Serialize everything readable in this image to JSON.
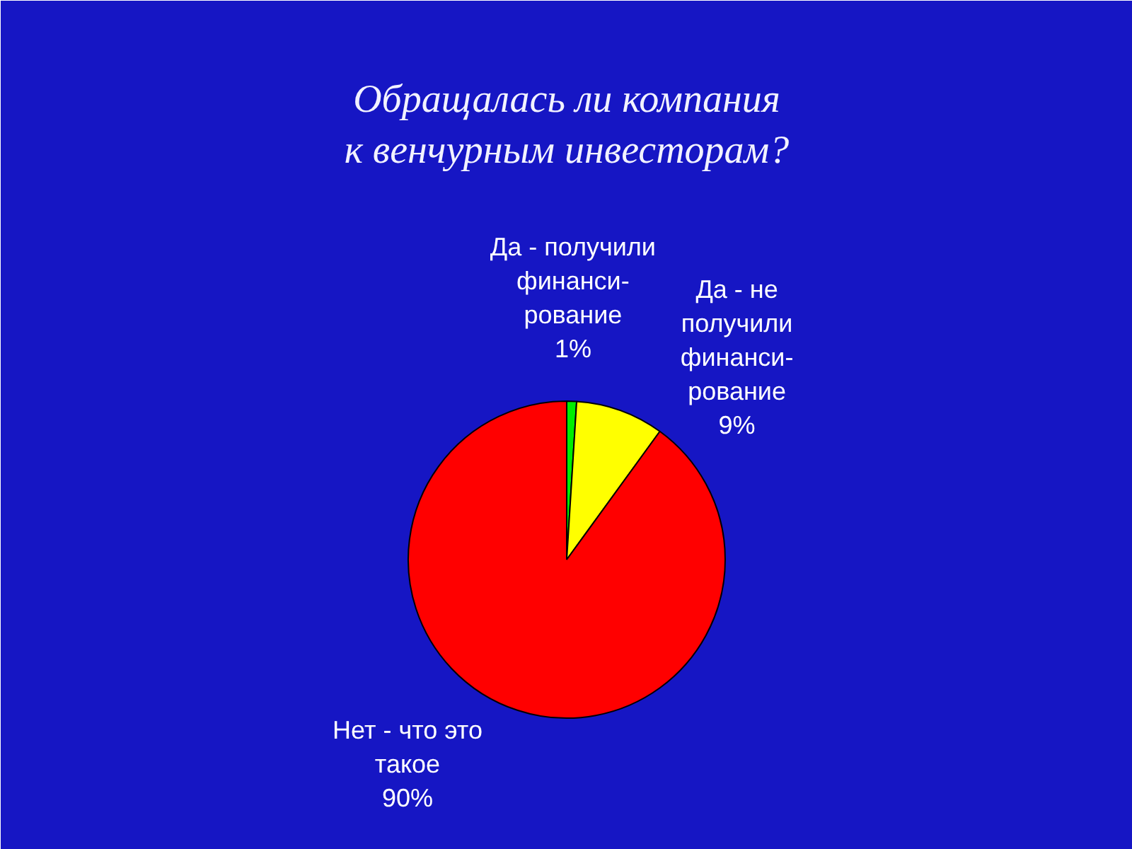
{
  "chart_data": {
    "type": "pie",
    "title": "Обращалась ли компания\nк венчурным инвесторам?",
    "categories": [
      "Да - получили\nфинанси-\nрование",
      "Да - не\nполучили\nфинанси-\nрование",
      "Нет - что это\nтакое"
    ],
    "values": [
      1,
      9,
      90
    ],
    "colors": [
      "#00ee00",
      "#ffff00",
      "#ff0000"
    ],
    "value_labels": [
      "1%",
      "9%",
      "90%"
    ]
  }
}
